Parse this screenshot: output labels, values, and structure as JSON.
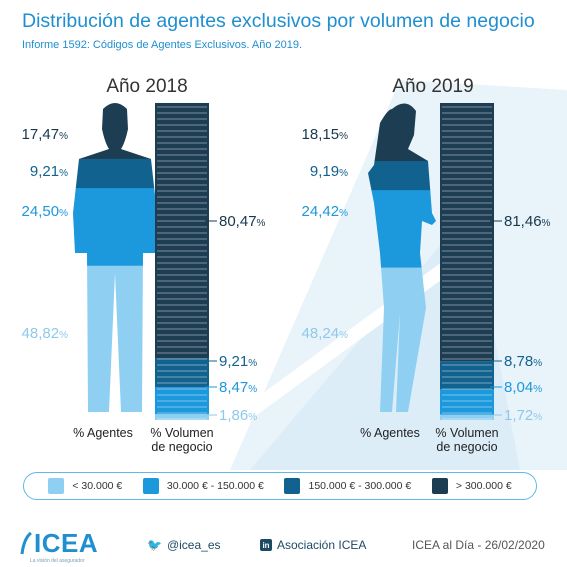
{
  "header": {
    "title": "Distribución de agentes exclusivos por volumen de negocio",
    "subtitle": "Informe 1592: Códigos de Agentes Exclusivos. Año 2019."
  },
  "colors": {
    "lt_30k": "#8fd0f2",
    "30k_150k": "#1c98dc",
    "150k_300k": "#12628f",
    "gt_300k": "#1d3d52",
    "title": "#1f8fd0"
  },
  "chart_data": {
    "type": "stacked-bar",
    "categories": [
      "< 30.000 €",
      "30.000 € - 150.000 €",
      "150.000 € - 300.000 €",
      "> 300.000 €"
    ],
    "axis_labels": [
      "% Agentes",
      "% Volumen de negocio"
    ],
    "panels": [
      {
        "year_label": "Año 2018",
        "agentes_display": [
          "48,82",
          "24,50",
          "9,21",
          "17,47"
        ],
        "agentes": [
          48.82,
          24.5,
          9.21,
          17.47
        ],
        "volumen_display": [
          "1,86",
          "8,47",
          "9,21",
          "80,47"
        ],
        "volumen": [
          1.86,
          8.47,
          9.21,
          80.47
        ]
      },
      {
        "year_label": "Año 2019",
        "agentes_display": [
          "48,24",
          "24,42",
          "9,19",
          "18,15"
        ],
        "agentes": [
          48.24,
          24.42,
          9.19,
          18.15
        ],
        "volumen_display": [
          "1,72",
          "8,04",
          "8,78",
          "81,46"
        ],
        "volumen": [
          1.72,
          8.04,
          8.78,
          81.46
        ]
      }
    ]
  },
  "legend": {
    "items": [
      {
        "label": "< 30.000 €",
        "color": "#8fd0f2"
      },
      {
        "label": "30.000 € - 150.000 €",
        "color": "#1c98dc"
      },
      {
        "label": "150.000 € - 300.000 €",
        "color": "#12628f"
      },
      {
        "label": "> 300.000 €",
        "color": "#1d3d52"
      }
    ]
  },
  "footer": {
    "logo": "ICEA",
    "logo_tagline": "La visión del asegurador",
    "twitter": "@icea_es",
    "twitter_icon": "twitter-icon",
    "linkedin": "Asociación ICEA",
    "linkedin_icon": "linkedin-icon",
    "linkedin_glyph": "in",
    "date": "ICEA al Día - 26/02/2020"
  }
}
